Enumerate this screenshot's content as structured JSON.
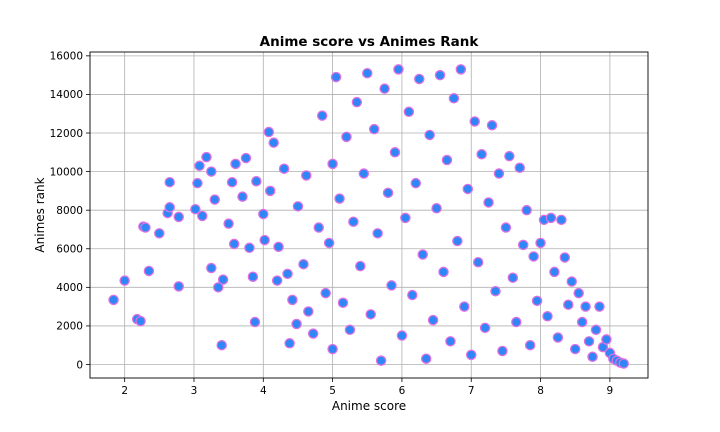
{
  "chart_data": {
    "type": "scatter",
    "title": "Anime score vs Animes Rank",
    "xlabel": "Anime score",
    "ylabel": "Animes rank",
    "xlim": [
      1.5,
      9.55
    ],
    "ylim": [
      -700,
      16200
    ],
    "xticks": [
      2,
      3,
      4,
      5,
      6,
      7,
      8,
      9
    ],
    "yticks": [
      0,
      2000,
      4000,
      6000,
      8000,
      10000,
      12000,
      14000,
      16000
    ],
    "grid": true,
    "marker_fill": "#2f86f6",
    "marker_edge": "#e070e0",
    "points": [
      {
        "x": 1.84,
        "y": 3350
      },
      {
        "x": 2.0,
        "y": 4350
      },
      {
        "x": 2.18,
        "y": 2350
      },
      {
        "x": 2.23,
        "y": 2250
      },
      {
        "x": 2.27,
        "y": 7150
      },
      {
        "x": 2.3,
        "y": 7100
      },
      {
        "x": 2.35,
        "y": 4850
      },
      {
        "x": 2.5,
        "y": 6800
      },
      {
        "x": 2.62,
        "y": 7850
      },
      {
        "x": 2.65,
        "y": 8150
      },
      {
        "x": 2.65,
        "y": 9450
      },
      {
        "x": 2.78,
        "y": 7650
      },
      {
        "x": 2.78,
        "y": 4050
      },
      {
        "x": 3.02,
        "y": 8050
      },
      {
        "x": 3.05,
        "y": 9400
      },
      {
        "x": 3.08,
        "y": 10300
      },
      {
        "x": 3.12,
        "y": 7700
      },
      {
        "x": 3.18,
        "y": 10750
      },
      {
        "x": 3.25,
        "y": 10000
      },
      {
        "x": 3.25,
        "y": 5000
      },
      {
        "x": 3.3,
        "y": 8550
      },
      {
        "x": 3.35,
        "y": 4000
      },
      {
        "x": 3.4,
        "y": 1000
      },
      {
        "x": 3.42,
        "y": 4400
      },
      {
        "x": 3.5,
        "y": 7300
      },
      {
        "x": 3.55,
        "y": 9450
      },
      {
        "x": 3.58,
        "y": 6250
      },
      {
        "x": 3.6,
        "y": 10400
      },
      {
        "x": 3.7,
        "y": 8700
      },
      {
        "x": 3.75,
        "y": 10700
      },
      {
        "x": 3.8,
        "y": 6050
      },
      {
        "x": 3.85,
        "y": 4550
      },
      {
        "x": 3.88,
        "y": 2200
      },
      {
        "x": 3.9,
        "y": 9500
      },
      {
        "x": 4.0,
        "y": 7800
      },
      {
        "x": 4.02,
        "y": 6450
      },
      {
        "x": 4.08,
        "y": 12050
      },
      {
        "x": 4.1,
        "y": 9000
      },
      {
        "x": 4.15,
        "y": 11500
      },
      {
        "x": 4.2,
        "y": 4350
      },
      {
        "x": 4.22,
        "y": 6100
      },
      {
        "x": 4.3,
        "y": 10150
      },
      {
        "x": 4.35,
        "y": 4700
      },
      {
        "x": 4.38,
        "y": 1100
      },
      {
        "x": 4.42,
        "y": 3350
      },
      {
        "x": 4.48,
        "y": 2100
      },
      {
        "x": 4.5,
        "y": 8200
      },
      {
        "x": 4.58,
        "y": 5200
      },
      {
        "x": 4.62,
        "y": 9800
      },
      {
        "x": 4.65,
        "y": 2750
      },
      {
        "x": 4.72,
        "y": 1600
      },
      {
        "x": 4.8,
        "y": 7100
      },
      {
        "x": 4.85,
        "y": 12900
      },
      {
        "x": 4.9,
        "y": 3700
      },
      {
        "x": 4.95,
        "y": 6300
      },
      {
        "x": 5.0,
        "y": 10400
      },
      {
        "x": 5.0,
        "y": 800
      },
      {
        "x": 5.05,
        "y": 14900
      },
      {
        "x": 5.1,
        "y": 8600
      },
      {
        "x": 5.15,
        "y": 3200
      },
      {
        "x": 5.2,
        "y": 11800
      },
      {
        "x": 5.25,
        "y": 1800
      },
      {
        "x": 5.3,
        "y": 7400
      },
      {
        "x": 5.35,
        "y": 13600
      },
      {
        "x": 5.4,
        "y": 5100
      },
      {
        "x": 5.45,
        "y": 9900
      },
      {
        "x": 5.5,
        "y": 15100
      },
      {
        "x": 5.55,
        "y": 2600
      },
      {
        "x": 5.6,
        "y": 12200
      },
      {
        "x": 5.65,
        "y": 6800
      },
      {
        "x": 5.7,
        "y": 200
      },
      {
        "x": 5.75,
        "y": 14300
      },
      {
        "x": 5.8,
        "y": 8900
      },
      {
        "x": 5.85,
        "y": 4100
      },
      {
        "x": 5.9,
        "y": 11000
      },
      {
        "x": 5.95,
        "y": 15300
      },
      {
        "x": 6.0,
        "y": 1500
      },
      {
        "x": 6.05,
        "y": 7600
      },
      {
        "x": 6.1,
        "y": 13100
      },
      {
        "x": 6.15,
        "y": 3600
      },
      {
        "x": 6.2,
        "y": 9400
      },
      {
        "x": 6.25,
        "y": 14800
      },
      {
        "x": 6.3,
        "y": 5700
      },
      {
        "x": 6.35,
        "y": 300
      },
      {
        "x": 6.4,
        "y": 11900
      },
      {
        "x": 6.45,
        "y": 2300
      },
      {
        "x": 6.5,
        "y": 8100
      },
      {
        "x": 6.55,
        "y": 15000
      },
      {
        "x": 6.6,
        "y": 4800
      },
      {
        "x": 6.65,
        "y": 10600
      },
      {
        "x": 6.7,
        "y": 1200
      },
      {
        "x": 6.75,
        "y": 13800
      },
      {
        "x": 6.8,
        "y": 6400
      },
      {
        "x": 6.85,
        "y": 15300
      },
      {
        "x": 6.9,
        "y": 3000
      },
      {
        "x": 6.95,
        "y": 9100
      },
      {
        "x": 7.0,
        "y": 500
      },
      {
        "x": 7.05,
        "y": 12600
      },
      {
        "x": 7.1,
        "y": 5300
      },
      {
        "x": 7.15,
        "y": 10900
      },
      {
        "x": 7.2,
        "y": 1900
      },
      {
        "x": 7.25,
        "y": 8400
      },
      {
        "x": 7.3,
        "y": 12400
      },
      {
        "x": 7.35,
        "y": 3800
      },
      {
        "x": 7.4,
        "y": 9900
      },
      {
        "x": 7.45,
        "y": 700
      },
      {
        "x": 7.5,
        "y": 7100
      },
      {
        "x": 7.55,
        "y": 10800
      },
      {
        "x": 7.6,
        "y": 4500
      },
      {
        "x": 7.65,
        "y": 2200
      },
      {
        "x": 7.7,
        "y": 10200
      },
      {
        "x": 7.75,
        "y": 6200
      },
      {
        "x": 7.8,
        "y": 8000
      },
      {
        "x": 7.85,
        "y": 1000
      },
      {
        "x": 7.9,
        "y": 5600
      },
      {
        "x": 7.95,
        "y": 3300
      },
      {
        "x": 8.0,
        "y": 6300
      },
      {
        "x": 8.05,
        "y": 7500
      },
      {
        "x": 8.1,
        "y": 2500
      },
      {
        "x": 8.15,
        "y": 7600
      },
      {
        "x": 8.2,
        "y": 4800
      },
      {
        "x": 8.25,
        "y": 1400
      },
      {
        "x": 8.3,
        "y": 7500
      },
      {
        "x": 8.35,
        "y": 5550
      },
      {
        "x": 8.4,
        "y": 3100
      },
      {
        "x": 8.45,
        "y": 4300
      },
      {
        "x": 8.5,
        "y": 800
      },
      {
        "x": 8.55,
        "y": 3700
      },
      {
        "x": 8.6,
        "y": 2200
      },
      {
        "x": 8.65,
        "y": 3000
      },
      {
        "x": 8.7,
        "y": 1200
      },
      {
        "x": 8.75,
        "y": 400
      },
      {
        "x": 8.8,
        "y": 1800
      },
      {
        "x": 8.85,
        "y": 3000
      },
      {
        "x": 8.9,
        "y": 900
      },
      {
        "x": 8.95,
        "y": 1300
      },
      {
        "x": 9.0,
        "y": 600
      },
      {
        "x": 9.05,
        "y": 300
      },
      {
        "x": 9.1,
        "y": 200
      },
      {
        "x": 9.15,
        "y": 100
      },
      {
        "x": 9.2,
        "y": 50
      }
    ]
  }
}
